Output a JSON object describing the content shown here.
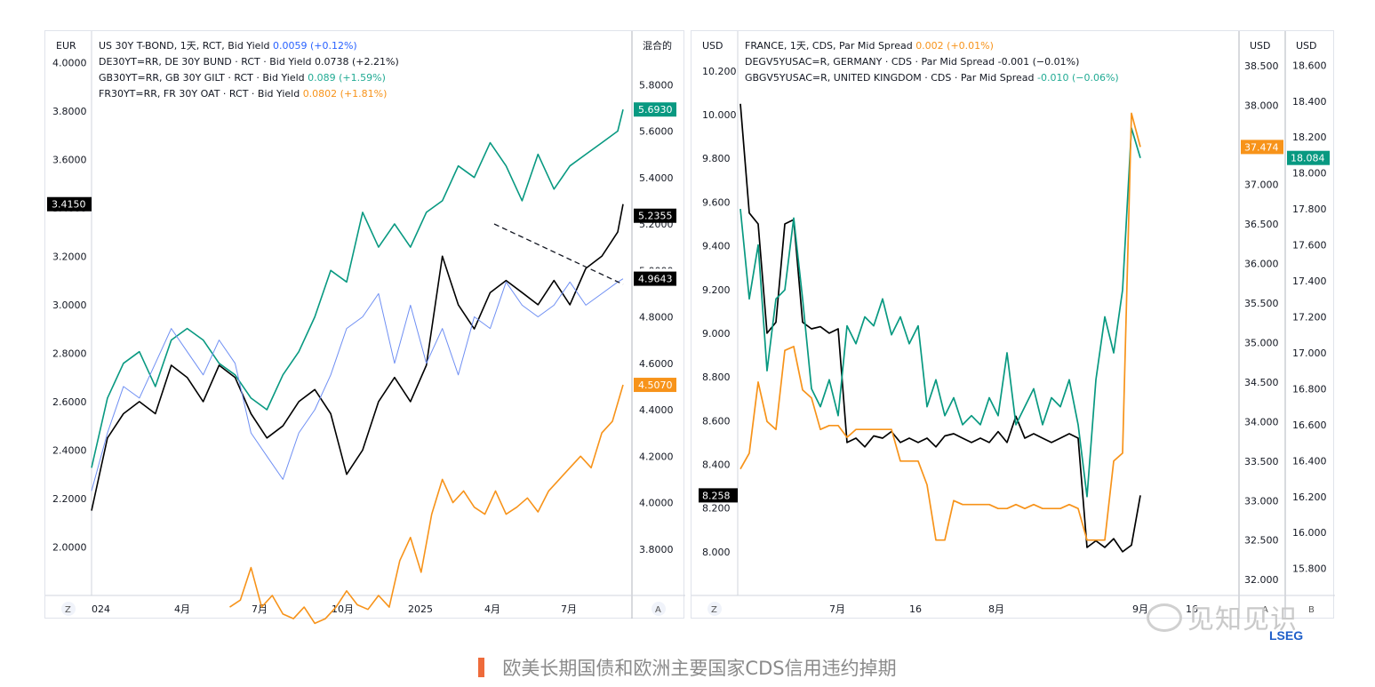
{
  "caption": "欧美长期国债和欧洲主要国家CDS信用违约掉期",
  "watermark": "见知见识",
  "brand": "LSEG",
  "chart_data": [
    {
      "type": "line",
      "left_axis_unit": "EUR",
      "right_axis_unit": "混合的",
      "left_ticks": [
        "2.0000",
        "2.2000",
        "2.4000",
        "2.6000",
        "2.8000",
        "3.0000",
        "3.2000",
        "3.4000",
        "3.6000",
        "3.8000",
        "4.0000"
      ],
      "right_ticks": [
        "3.8000",
        "4.0000",
        "4.2000",
        "4.4000",
        "4.6000",
        "4.8000",
        "5.0000",
        "5.2000",
        "5.4000",
        "5.6000",
        "5.8000"
      ],
      "x_ticks": [
        "024",
        "4月",
        "7月",
        "10月",
        "2025",
        "4月",
        "7月"
      ],
      "corner_left": "Z",
      "corner_right": "A",
      "ylim_left": [
        1.8,
        4.1
      ],
      "ylim_right": [
        3.6,
        6.0
      ],
      "legend": [
        {
          "label": "US 30Y T-BOND, 1天, RCT, Bid Yield",
          "value": "0.0059 (+0.12%)",
          "color": "#2962ff"
        },
        {
          "label": "DE30YT=RR, DE 30Y BUND · RCT · Bid Yield",
          "value": "0.0738 (+2.21%)",
          "color": "#131722"
        },
        {
          "label": "GB30YT=RR, GB 30Y GILT · RCT · Bid Yield",
          "value": "0.089 (+1.59%)",
          "color": "#22ab94"
        },
        {
          "label": "FR30YT=RR, FR 30Y OAT · RCT · Bid Yield",
          "value": "0.0802 (+1.81%)",
          "color": "#f7931a"
        }
      ],
      "badges": [
        {
          "text": "5.6930",
          "color": "#089981",
          "axis": "right",
          "value": 5.693
        },
        {
          "text": "5.2355",
          "color": "#000000",
          "axis": "right",
          "value": 5.2355
        },
        {
          "text": "4.9769",
          "color": "#ffffff",
          "axis": "right",
          "value": 4.9769
        },
        {
          "text": "4.9643",
          "color": "#000000",
          "axis": "right",
          "value": 4.9643
        },
        {
          "text": "4.5070",
          "color": "#f7931a",
          "axis": "right",
          "value": 4.507
        },
        {
          "text": "3.4150",
          "color": "#000000",
          "axis": "left",
          "value": 3.415
        }
      ],
      "series": [
        {
          "name": "GB 30Y GILT",
          "color": "#089981",
          "axis": "right",
          "x": [
            0,
            0.03,
            0.06,
            0.09,
            0.12,
            0.15,
            0.18,
            0.21,
            0.24,
            0.27,
            0.3,
            0.33,
            0.36,
            0.39,
            0.42,
            0.45,
            0.48,
            0.51,
            0.54,
            0.57,
            0.6,
            0.63,
            0.66,
            0.69,
            0.72,
            0.75,
            0.78,
            0.81,
            0.84,
            0.87,
            0.9,
            0.93,
            0.96,
            0.99,
            1.0
          ],
          "values": [
            4.15,
            4.45,
            4.6,
            4.65,
            4.5,
            4.7,
            4.75,
            4.7,
            4.6,
            4.55,
            4.45,
            4.4,
            4.55,
            4.65,
            4.8,
            5.0,
            4.95,
            5.25,
            5.1,
            5.2,
            5.1,
            5.25,
            5.3,
            5.45,
            5.4,
            5.55,
            5.45,
            5.3,
            5.5,
            5.35,
            5.45,
            5.5,
            5.55,
            5.6,
            5.693
          ]
        },
        {
          "name": "DE 30Y BUND",
          "color": "#000000",
          "axis": "left",
          "x": [
            0,
            0.03,
            0.06,
            0.09,
            0.12,
            0.15,
            0.18,
            0.21,
            0.24,
            0.27,
            0.3,
            0.33,
            0.36,
            0.39,
            0.42,
            0.45,
            0.48,
            0.51,
            0.54,
            0.57,
            0.6,
            0.63,
            0.66,
            0.69,
            0.72,
            0.75,
            0.78,
            0.81,
            0.84,
            0.87,
            0.9,
            0.93,
            0.96,
            0.99,
            1.0
          ],
          "values": [
            2.15,
            2.45,
            2.55,
            2.6,
            2.55,
            2.75,
            2.7,
            2.6,
            2.75,
            2.7,
            2.55,
            2.45,
            2.5,
            2.6,
            2.65,
            2.55,
            2.3,
            2.4,
            2.6,
            2.7,
            2.6,
            2.75,
            3.2,
            3.0,
            2.9,
            3.05,
            3.1,
            3.05,
            3.0,
            3.1,
            3.0,
            3.15,
            3.2,
            3.3,
            3.415
          ]
        },
        {
          "name": "US 30Y T-BOND",
          "color": "#6f8ff3",
          "axis": "right",
          "x": [
            0,
            0.03,
            0.06,
            0.09,
            0.12,
            0.15,
            0.18,
            0.21,
            0.24,
            0.27,
            0.3,
            0.33,
            0.36,
            0.39,
            0.42,
            0.45,
            0.48,
            0.51,
            0.54,
            0.57,
            0.6,
            0.63,
            0.66,
            0.69,
            0.72,
            0.75,
            0.78,
            0.81,
            0.84,
            0.87,
            0.9,
            0.93,
            0.96,
            0.99,
            1.0
          ],
          "values": [
            4.05,
            4.3,
            4.5,
            4.45,
            4.6,
            4.75,
            4.65,
            4.55,
            4.7,
            4.6,
            4.3,
            4.2,
            4.1,
            4.3,
            4.4,
            4.55,
            4.75,
            4.8,
            4.9,
            4.6,
            4.85,
            4.6,
            4.75,
            4.55,
            4.8,
            4.75,
            4.95,
            4.85,
            4.8,
            4.85,
            4.95,
            4.85,
            4.9,
            4.95,
            4.964
          ]
        },
        {
          "name": "FR 30Y OAT",
          "color": "#f7931a",
          "axis": "right",
          "x": [
            0.26,
            0.28,
            0.3,
            0.32,
            0.34,
            0.36,
            0.38,
            0.4,
            0.42,
            0.44,
            0.46,
            0.48,
            0.5,
            0.52,
            0.54,
            0.56,
            0.58,
            0.6,
            0.62,
            0.64,
            0.66,
            0.68,
            0.7,
            0.72,
            0.74,
            0.76,
            0.78,
            0.8,
            0.82,
            0.84,
            0.86,
            0.88,
            0.9,
            0.92,
            0.94,
            0.96,
            0.98,
            1.0
          ],
          "values": [
            3.55,
            3.58,
            3.72,
            3.55,
            3.6,
            3.52,
            3.5,
            3.55,
            3.48,
            3.5,
            3.55,
            3.62,
            3.56,
            3.54,
            3.6,
            3.55,
            3.75,
            3.85,
            3.7,
            3.95,
            4.1,
            4.0,
            4.05,
            3.98,
            3.95,
            4.05,
            3.95,
            3.98,
            4.02,
            3.96,
            4.05,
            4.1,
            4.15,
            4.2,
            4.15,
            4.3,
            4.35,
            4.507
          ]
        }
      ]
    },
    {
      "type": "line",
      "left_axis_unit": "USD",
      "right_axis_units": [
        "USD",
        "USD"
      ],
      "left_ticks": [
        "8.000",
        "8.200",
        "8.400",
        "8.600",
        "8.800",
        "9.000",
        "9.200",
        "9.400",
        "9.600",
        "9.800",
        "10.000",
        "10.200"
      ],
      "right_ticks_1": [
        "32.000",
        "32.500",
        "33.000",
        "33.500",
        "34.000",
        "34.500",
        "35.000",
        "35.500",
        "36.000",
        "36.500",
        "37.000",
        "37.500",
        "38.000",
        "38.500"
      ],
      "right_ticks_2": [
        "15.800",
        "16.000",
        "16.200",
        "16.400",
        "16.600",
        "16.800",
        "17.000",
        "17.200",
        "17.400",
        "17.600",
        "17.800",
        "18.000",
        "18.200",
        "18.400",
        "18.600"
      ],
      "x_ticks": [
        "7月",
        "16",
        "8月",
        "9月",
        "16"
      ],
      "corner_left": "Z",
      "corner_right_1": "A",
      "corner_right_2": "B",
      "ylim_left": [
        7.8,
        10.35
      ],
      "ylim_right_1": [
        31.8,
        38.85
      ],
      "ylim_right_2": [
        15.65,
        18.75
      ],
      "legend": [
        {
          "label": "FRANCE, 1天, CDS, Par Mid Spread",
          "value": "0.002 (+0.01%)",
          "color": "#f7931a"
        },
        {
          "label": "DEGV5YUSAC=R, GERMANY · CDS · Par Mid Spread",
          "value": "-0.001 (−0.01%)",
          "color": "#131722"
        },
        {
          "label": "GBGV5YUSAC=R, UNITED KINGDOM · CDS · Par Mid Spread",
          "value": "-0.010 (−0.06%)",
          "color": "#22ab94"
        }
      ],
      "badges": [
        {
          "text": "8.258",
          "color": "#000000",
          "axis": "left",
          "value": 8.258
        },
        {
          "text": "37.474",
          "color": "#f7931a",
          "axis": "right1",
          "value": 37.474
        },
        {
          "text": "18.084",
          "color": "#089981",
          "axis": "right2",
          "value": 18.084
        }
      ],
      "series": [
        {
          "name": "GERMANY",
          "color": "#000000",
          "axis": "left",
          "x": [
            0,
            1,
            2,
            3,
            4,
            5,
            6,
            7,
            8,
            9,
            10,
            11,
            12,
            13,
            14,
            15,
            16,
            17,
            18,
            19,
            20,
            21,
            22,
            23,
            24,
            25,
            26,
            27,
            28,
            29,
            30,
            31,
            32,
            33,
            34,
            35,
            36,
            37,
            38,
            39,
            40,
            41,
            42,
            43,
            44,
            45
          ],
          "values": [
            10.05,
            9.55,
            9.5,
            9.0,
            9.05,
            9.5,
            9.52,
            9.05,
            9.02,
            9.03,
            9.0,
            9.02,
            8.5,
            8.52,
            8.48,
            8.53,
            8.52,
            8.55,
            8.5,
            8.52,
            8.5,
            8.52,
            8.48,
            8.53,
            8.54,
            8.52,
            8.5,
            8.52,
            8.5,
            8.55,
            8.5,
            8.62,
            8.52,
            8.54,
            8.52,
            8.5,
            8.52,
            8.54,
            8.52,
            8.02,
            8.05,
            8.02,
            8.06,
            8.0,
            8.03,
            8.258
          ]
        },
        {
          "name": "UNITED KINGDOM",
          "color": "#089981",
          "axis": "right2",
          "x": [
            0,
            1,
            2,
            3,
            4,
            5,
            6,
            7,
            8,
            9,
            10,
            11,
            12,
            13,
            14,
            15,
            16,
            17,
            18,
            19,
            20,
            21,
            22,
            23,
            24,
            25,
            26,
            27,
            28,
            29,
            30,
            31,
            32,
            33,
            34,
            35,
            36,
            37,
            38,
            39,
            40,
            41,
            42,
            43,
            44,
            45
          ],
          "values": [
            17.8,
            17.3,
            17.6,
            16.9,
            17.3,
            17.35,
            17.75,
            17.3,
            16.8,
            16.7,
            16.85,
            16.65,
            17.15,
            17.05,
            17.2,
            17.15,
            17.3,
            17.1,
            17.2,
            17.05,
            17.15,
            16.7,
            16.85,
            16.65,
            16.75,
            16.6,
            16.65,
            16.6,
            16.75,
            16.65,
            17.0,
            16.6,
            16.7,
            16.8,
            16.6,
            16.75,
            16.7,
            16.85,
            16.6,
            16.2,
            16.85,
            17.2,
            17.0,
            17.35,
            18.25,
            18.084
          ]
        },
        {
          "name": "FRANCE",
          "color": "#f7931a",
          "axis": "right1",
          "x": [
            0,
            1,
            2,
            3,
            4,
            5,
            6,
            7,
            8,
            9,
            10,
            11,
            12,
            13,
            14,
            15,
            16,
            17,
            18,
            19,
            20,
            21,
            22,
            23,
            24,
            25,
            26,
            27,
            28,
            29,
            30,
            31,
            32,
            33,
            34,
            35,
            36,
            37,
            38,
            39,
            40,
            41,
            42,
            43,
            44,
            45
          ],
          "values": [
            33.4,
            33.6,
            34.5,
            34.0,
            33.9,
            34.9,
            34.95,
            34.4,
            34.3,
            33.9,
            33.95,
            33.95,
            33.8,
            33.9,
            33.9,
            33.9,
            33.9,
            33.9,
            33.5,
            33.5,
            33.5,
            33.2,
            32.5,
            32.5,
            33.0,
            32.95,
            32.95,
            32.95,
            32.95,
            32.9,
            32.9,
            32.95,
            32.9,
            32.95,
            32.9,
            32.9,
            32.9,
            32.95,
            32.9,
            32.5,
            32.5,
            32.5,
            33.5,
            33.6,
            37.9,
            37.474
          ]
        }
      ]
    }
  ]
}
